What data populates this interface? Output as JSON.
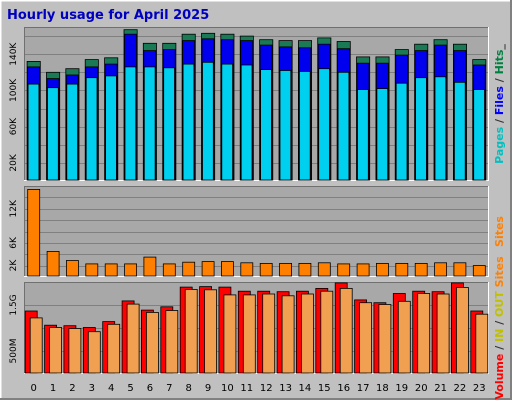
{
  "chart_data": {
    "type": "bar",
    "title": "Hourly usage for April 2025",
    "categories": [
      "0",
      "1",
      "2",
      "3",
      "4",
      "5",
      "6",
      "7",
      "8",
      "9",
      "10",
      "11",
      "12",
      "13",
      "14",
      "15",
      "16",
      "17",
      "18",
      "19",
      "20",
      "21",
      "22",
      "23"
    ],
    "panels": [
      {
        "id": "top",
        "ylim": [
          0,
          170000
        ],
        "y_ticks": [
          20000,
          60000,
          100000,
          140000
        ],
        "y_tick_labels": [
          "20K",
          "60K",
          "100K",
          "140K"
        ],
        "axis_label_parts": [
          {
            "text": "Pages",
            "color": "#00c0c0"
          },
          {
            "text": " / ",
            "color": "#333333"
          },
          {
            "text": "Files",
            "color": "#0000ff"
          },
          {
            "text": " / ",
            "color": "#333333"
          },
          {
            "text": "Hits",
            "color": "#008040"
          },
          {
            "text": "_",
            "color": "#333333"
          }
        ],
        "series": [
          {
            "name": "Hits",
            "color": "#1a7a55",
            "values": [
              132000,
              120000,
              124000,
              134000,
              136000,
              167000,
              152000,
              152000,
              162000,
              163000,
              162000,
              160000,
              156000,
              155000,
              155000,
              158000,
              154000,
              137000,
              137000,
              145000,
              151000,
              156000,
              151000,
              134000
            ]
          },
          {
            "name": "Files",
            "color": "#0000ee",
            "values": [
              126000,
              113000,
              117000,
              126000,
              129000,
              162000,
              144000,
              145000,
              155000,
              157000,
              156000,
              155000,
              150000,
              148000,
              147000,
              151000,
              146000,
              130000,
              130000,
              139000,
              144000,
              150000,
              144000,
              128000
            ]
          },
          {
            "name": "Pages",
            "color": "#00d0f0",
            "values": [
              107000,
              103000,
              107000,
              114000,
              116000,
              126000,
              126000,
              125000,
              129000,
              131000,
              129000,
              128000,
              123000,
              122000,
              121000,
              124000,
              120000,
              101000,
              102000,
              108000,
              114000,
              115000,
              109000,
              101000
            ]
          }
        ]
      },
      {
        "id": "middle",
        "ylim": [
          0,
          16000
        ],
        "y_ticks": [
          2000,
          6000,
          12000
        ],
        "y_tick_labels": [
          "2K",
          "6K",
          "12K"
        ],
        "axis_label_parts": [
          {
            "text": "Sites",
            "color": "#ff8000"
          }
        ],
        "series": [
          {
            "name": "Sites",
            "color": "#ff8000",
            "values": [
              15400,
              4500,
              2900,
              2300,
              2300,
              2300,
              3500,
              2300,
              2600,
              2700,
              2700,
              2500,
              2400,
              2400,
              2400,
              2500,
              2300,
              2300,
              2400,
              2400,
              2400,
              2500,
              2500,
              2000
            ]
          }
        ]
      },
      {
        "id": "bottom",
        "ylim": [
          0,
          2000
        ],
        "y_ticks": [
          500,
          1500
        ],
        "y_tick_labels": [
          "500M",
          "1.5G"
        ],
        "axis_label_parts": [
          {
            "text": "Volume",
            "color": "#ff0000"
          },
          {
            "text": " / ",
            "color": "#333333"
          },
          {
            "text": "IN",
            "color": "#c0c000"
          },
          {
            "text": " / ",
            "color": "#333333"
          },
          {
            "text": "OUT",
            "color": "#c0c000"
          },
          {
            "text": " ",
            "color": "#333333"
          },
          {
            "text": "Sites",
            "color": "#ff8000"
          }
        ],
        "series": [
          {
            "name": "Volume",
            "color": "#ff0000",
            "values": [
              1370,
              1060,
              1050,
              1010,
              1140,
              1590,
              1390,
              1460,
              1890,
              1900,
              1890,
              1800,
              1800,
              1790,
              1800,
              1860,
              1980,
              1610,
              1550,
              1750,
              1800,
              1790,
              1980,
              1370
            ]
          },
          {
            "name": "OUT",
            "color": "#f0a050",
            "values": [
              1220,
              1010,
              990,
              920,
              1080,
              1520,
              1340,
              1380,
              1840,
              1830,
              1720,
              1720,
              1740,
              1700,
              1740,
              1800,
              1860,
              1550,
              1510,
              1580,
              1750,
              1740,
              1880,
              1300
            ]
          }
        ]
      }
    ],
    "colors": {
      "title": "#0000c0",
      "page_bg": "#c0c0c0",
      "plot_bg": "#a8a8a8",
      "grid": "#808080"
    }
  }
}
